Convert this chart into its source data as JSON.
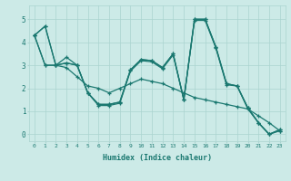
{
  "xlabel": "Humidex (Indice chaleur)",
  "bg_color": "#cceae7",
  "grid_color": "#aad4d0",
  "line_color": "#1a7870",
  "xlim": [
    -0.5,
    23.5
  ],
  "ylim": [
    -0.3,
    5.6
  ],
  "x_ticks": [
    0,
    1,
    2,
    3,
    4,
    5,
    6,
    7,
    8,
    9,
    10,
    11,
    12,
    13,
    14,
    15,
    16,
    17,
    18,
    19,
    20,
    21,
    22,
    23
  ],
  "y_ticks": [
    0,
    1,
    2,
    3,
    4,
    5
  ],
  "series": [
    [
      4.3,
      4.7,
      3.0,
      3.1,
      3.0,
      1.8,
      1.3,
      1.3,
      1.4,
      2.8,
      3.25,
      3.2,
      2.9,
      3.5,
      1.5,
      5.0,
      5.0,
      3.8,
      2.2,
      2.1,
      1.15,
      0.5,
      0.0,
      0.2
    ],
    [
      4.3,
      4.7,
      3.0,
      3.1,
      3.0,
      1.8,
      1.3,
      1.3,
      1.4,
      2.8,
      3.25,
      3.2,
      2.9,
      3.5,
      1.5,
      5.0,
      5.0,
      3.8,
      2.2,
      2.1,
      1.15,
      0.5,
      0.0,
      0.2
    ],
    [
      4.3,
      3.0,
      3.0,
      3.35,
      3.0,
      1.8,
      1.25,
      1.25,
      1.35,
      2.75,
      3.2,
      3.15,
      2.85,
      3.45,
      1.5,
      4.95,
      4.95,
      3.75,
      2.15,
      2.1,
      1.1,
      0.5,
      0.0,
      0.15
    ],
    [
      4.3,
      3.0,
      3.0,
      2.9,
      2.5,
      2.1,
      2.0,
      1.8,
      2.0,
      2.2,
      2.4,
      2.3,
      2.2,
      2.0,
      1.8,
      1.6,
      1.5,
      1.4,
      1.3,
      1.2,
      1.1,
      0.8,
      0.5,
      0.15
    ]
  ],
  "marker_size": 3.5,
  "linewidth": 0.9
}
